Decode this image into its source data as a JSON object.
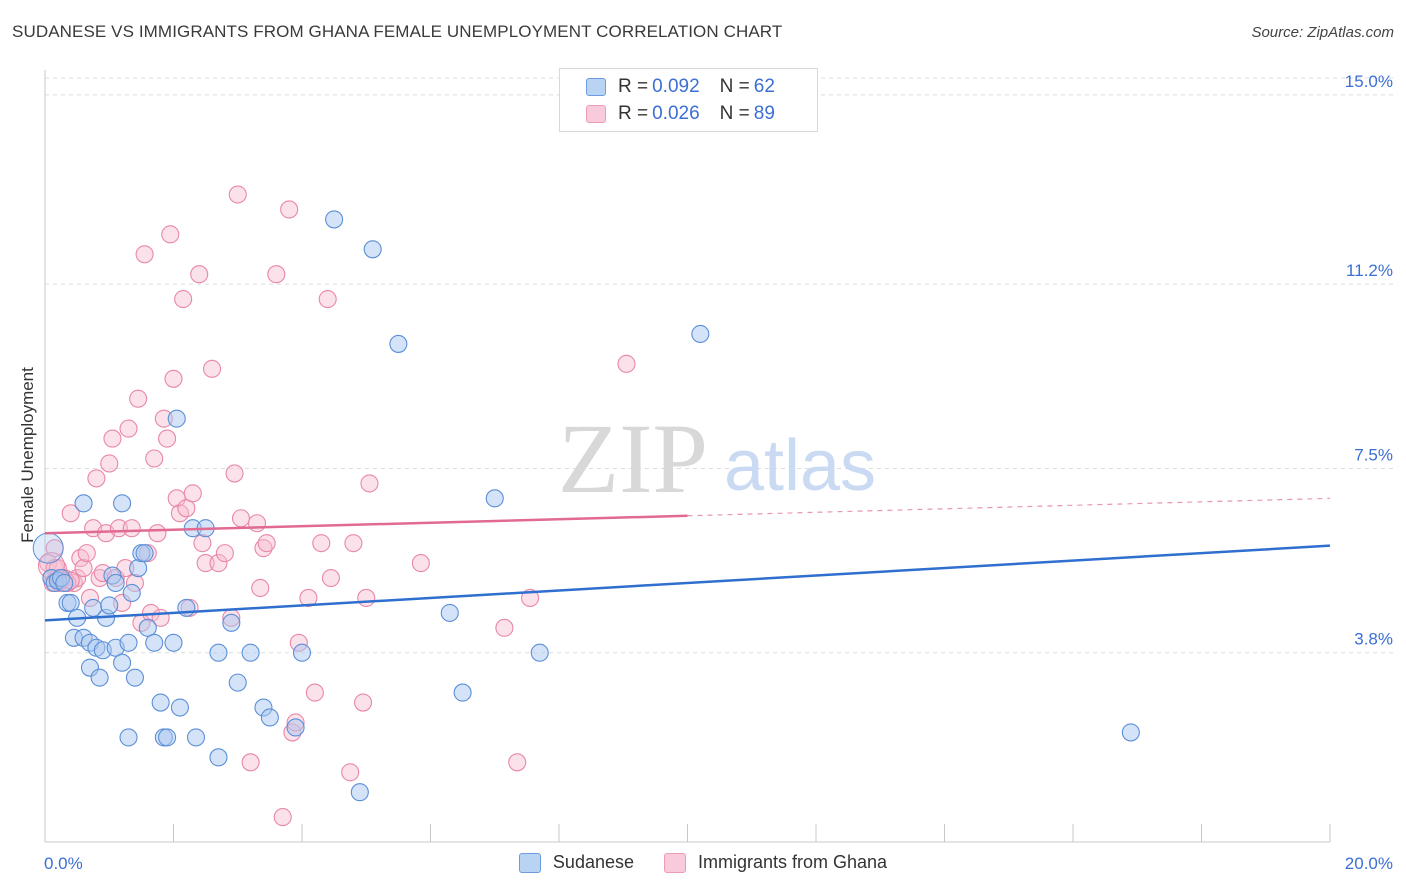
{
  "header": {
    "title": "SUDANESE VS IMMIGRANTS FROM GHANA FEMALE UNEMPLOYMENT CORRELATION CHART",
    "source": "Source: ZipAtlas.com"
  },
  "watermark": {
    "zip": "ZIP",
    "atlas": "atlas"
  },
  "legend": {
    "series1": {
      "r_label": "R = ",
      "r_value": "0.092",
      "n_label": "N = ",
      "n_value": "62"
    },
    "series2": {
      "r_label": "R = ",
      "r_value": "0.026",
      "n_label": "N = ",
      "n_value": "89"
    }
  },
  "colors": {
    "sudanese_fill": "#a9c8f0",
    "sudanese_stroke": "#5b8fd8",
    "sudanese_line": "#2f6fd0",
    "ghana_fill": "#f7bdd0",
    "ghana_stroke": "#e987a8",
    "ghana_line": "#e06a92",
    "axis_label": "#3b6fd4",
    "grid": "#dcdcdc"
  },
  "chart_data": {
    "type": "scatter",
    "title": "SUDANESE VS IMMIGRANTS FROM GHANA FEMALE UNEMPLOYMENT CORRELATION CHART",
    "xlabel": "",
    "ylabel": "Female Unemployment",
    "xlim": [
      0,
      20
    ],
    "ylim": [
      0,
      15.5
    ],
    "x_tick_labels": [
      "0.0%",
      "20.0%"
    ],
    "y_ticks": [
      3.8,
      7.5,
      11.2,
      15.0
    ],
    "y_tick_labels": [
      "3.8%",
      "7.5%",
      "11.2%",
      "15.0%"
    ],
    "legend": [
      "Sudanese",
      "Immigrants from Ghana"
    ],
    "series": [
      {
        "name": "Sudanese",
        "r": 0.092,
        "n": 62,
        "trend": {
          "x0": 0,
          "y0": 4.45,
          "x1": 20,
          "y1": 5.95,
          "solid_to": 20
        },
        "points": [
          [
            0.1,
            5.3
          ],
          [
            0.15,
            5.2
          ],
          [
            0.2,
            5.25
          ],
          [
            0.25,
            5.3
          ],
          [
            0.3,
            5.2
          ],
          [
            0.35,
            4.8
          ],
          [
            0.4,
            4.8
          ],
          [
            0.45,
            4.1
          ],
          [
            0.5,
            4.5
          ],
          [
            0.6,
            6.8
          ],
          [
            0.6,
            4.1
          ],
          [
            0.7,
            4.0
          ],
          [
            0.7,
            3.5
          ],
          [
            0.75,
            4.7
          ],
          [
            0.8,
            3.9
          ],
          [
            0.85,
            3.3
          ],
          [
            0.9,
            3.85
          ],
          [
            0.95,
            4.5
          ],
          [
            1.0,
            4.75
          ],
          [
            1.05,
            5.35
          ],
          [
            1.1,
            3.9
          ],
          [
            1.1,
            5.2
          ],
          [
            1.2,
            3.6
          ],
          [
            1.2,
            6.8
          ],
          [
            1.3,
            4.0
          ],
          [
            1.3,
            2.1
          ],
          [
            1.35,
            5.0
          ],
          [
            1.4,
            3.3
          ],
          [
            1.45,
            5.5
          ],
          [
            1.5,
            5.8
          ],
          [
            1.55,
            5.8
          ],
          [
            1.6,
            4.3
          ],
          [
            1.7,
            4.0
          ],
          [
            1.8,
            2.8
          ],
          [
            1.85,
            2.1
          ],
          [
            1.9,
            2.1
          ],
          [
            2.0,
            4.0
          ],
          [
            2.05,
            8.5
          ],
          [
            2.1,
            2.7
          ],
          [
            2.2,
            4.7
          ],
          [
            2.3,
            6.3
          ],
          [
            2.35,
            2.1
          ],
          [
            2.5,
            6.3
          ],
          [
            2.7,
            1.7
          ],
          [
            2.7,
            3.8
          ],
          [
            2.9,
            4.4
          ],
          [
            3.0,
            3.2
          ],
          [
            3.2,
            3.8
          ],
          [
            3.4,
            2.7
          ],
          [
            3.5,
            2.5
          ],
          [
            3.9,
            2.3
          ],
          [
            4.0,
            3.8
          ],
          [
            4.5,
            12.5
          ],
          [
            4.9,
            1.0
          ],
          [
            5.1,
            11.9
          ],
          [
            5.5,
            10.0
          ],
          [
            6.3,
            4.6
          ],
          [
            6.5,
            3.0
          ],
          [
            7.0,
            6.9
          ],
          [
            7.7,
            3.8
          ],
          [
            10.2,
            10.2
          ],
          [
            16.9,
            2.2
          ]
        ]
      },
      {
        "name": "Immigrants from Ghana",
        "r": 0.026,
        "n": 89,
        "trend": {
          "x0": 0,
          "y0": 6.2,
          "x1": 20,
          "y1": 6.9,
          "solid_to": 10
        },
        "points": [
          [
            0.05,
            5.6
          ],
          [
            0.1,
            5.3
          ],
          [
            0.12,
            5.2
          ],
          [
            0.15,
            5.5
          ],
          [
            0.2,
            5.3
          ],
          [
            0.22,
            5.2
          ],
          [
            0.25,
            5.25
          ],
          [
            0.3,
            5.3
          ],
          [
            0.35,
            5.2
          ],
          [
            0.4,
            6.6
          ],
          [
            0.45,
            5.2
          ],
          [
            0.5,
            5.3
          ],
          [
            0.55,
            5.7
          ],
          [
            0.6,
            5.5
          ],
          [
            0.65,
            5.8
          ],
          [
            0.7,
            4.9
          ],
          [
            0.75,
            6.3
          ],
          [
            0.8,
            7.3
          ],
          [
            0.85,
            5.3
          ],
          [
            0.9,
            5.4
          ],
          [
            0.95,
            6.2
          ],
          [
            1.0,
            7.6
          ],
          [
            1.05,
            8.1
          ],
          [
            1.1,
            5.3
          ],
          [
            1.15,
            6.3
          ],
          [
            1.2,
            4.8
          ],
          [
            1.25,
            5.5
          ],
          [
            1.3,
            8.3
          ],
          [
            1.35,
            6.3
          ],
          [
            1.4,
            5.2
          ],
          [
            1.45,
            8.9
          ],
          [
            1.5,
            4.4
          ],
          [
            1.55,
            11.8
          ],
          [
            1.6,
            5.8
          ],
          [
            1.65,
            4.6
          ],
          [
            1.7,
            7.7
          ],
          [
            1.75,
            6.2
          ],
          [
            1.8,
            4.5
          ],
          [
            1.85,
            8.5
          ],
          [
            1.9,
            8.1
          ],
          [
            1.95,
            12.2
          ],
          [
            2.0,
            9.3
          ],
          [
            2.05,
            6.9
          ],
          [
            2.1,
            6.6
          ],
          [
            2.15,
            10.9
          ],
          [
            2.2,
            6.7
          ],
          [
            2.25,
            4.7
          ],
          [
            2.3,
            7.0
          ],
          [
            2.4,
            11.4
          ],
          [
            2.45,
            6.0
          ],
          [
            2.5,
            5.6
          ],
          [
            2.6,
            9.5
          ],
          [
            2.7,
            5.6
          ],
          [
            2.8,
            5.8
          ],
          [
            2.9,
            4.5
          ],
          [
            2.95,
            7.4
          ],
          [
            3.0,
            13.0
          ],
          [
            3.05,
            6.5
          ],
          [
            3.2,
            1.6
          ],
          [
            3.3,
            6.4
          ],
          [
            3.35,
            5.1
          ],
          [
            3.4,
            5.9
          ],
          [
            3.45,
            6.0
          ],
          [
            3.6,
            11.4
          ],
          [
            3.7,
            0.5
          ],
          [
            3.8,
            12.7
          ],
          [
            3.85,
            2.2
          ],
          [
            3.9,
            2.4
          ],
          [
            3.95,
            4.0
          ],
          [
            4.1,
            4.9
          ],
          [
            4.2,
            3.0
          ],
          [
            4.3,
            6.0
          ],
          [
            4.4,
            10.9
          ],
          [
            4.45,
            5.3
          ],
          [
            4.75,
            1.4
          ],
          [
            4.8,
            6.0
          ],
          [
            4.95,
            2.8
          ],
          [
            5.0,
            4.9
          ],
          [
            5.05,
            7.2
          ],
          [
            5.85,
            5.6
          ],
          [
            7.15,
            4.3
          ],
          [
            7.35,
            1.6
          ],
          [
            7.55,
            4.9
          ],
          [
            9.05,
            9.6
          ],
          [
            0.15,
            5.9
          ],
          [
            0.2,
            5.5
          ],
          [
            0.3,
            5.3
          ],
          [
            0.35,
            5.2
          ],
          [
            0.4,
            5.25
          ]
        ]
      }
    ]
  }
}
